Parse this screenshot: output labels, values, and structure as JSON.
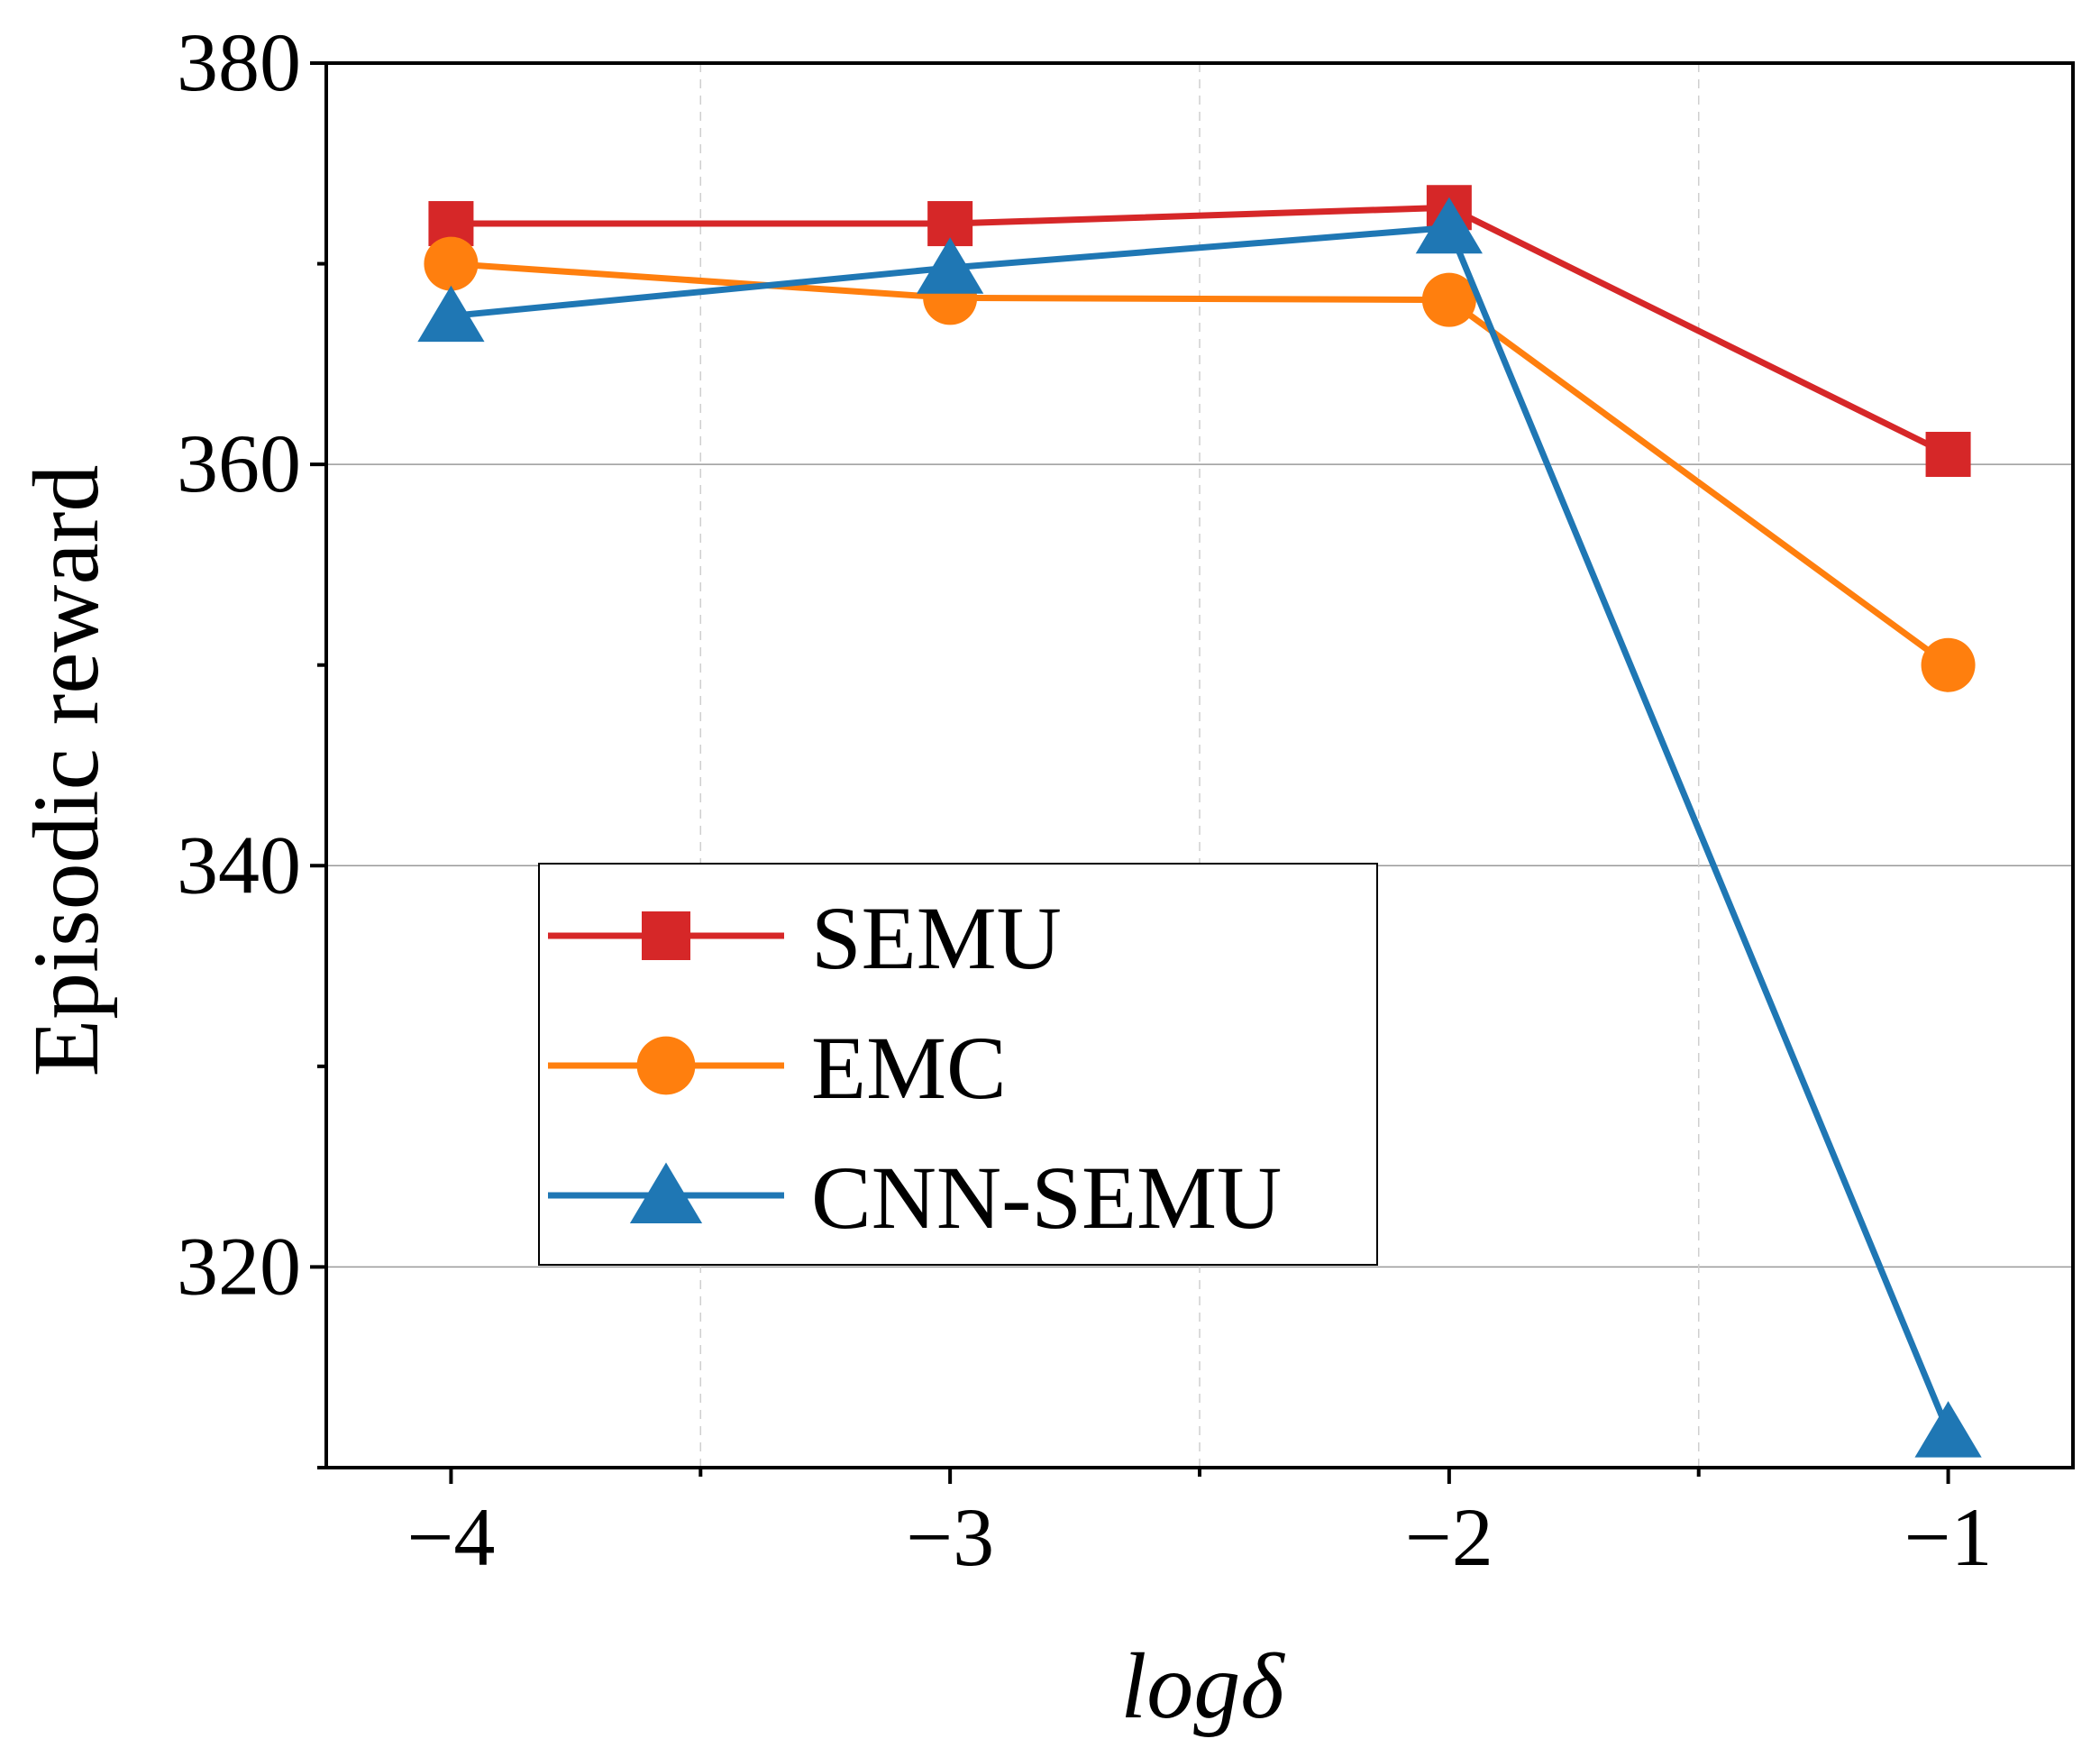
{
  "chart_data": {
    "type": "line",
    "title": "",
    "xlabel": "logδ",
    "ylabel": "Episodic reward",
    "x": [
      -4,
      -3,
      -2,
      -1
    ],
    "x_tick_labels": [
      "−4",
      "−3",
      "−2",
      "−1"
    ],
    "y_tick_values": [
      320,
      340,
      360,
      380
    ],
    "y_tick_labels": [
      "320",
      "340",
      "360",
      "380"
    ],
    "xlim": [
      -4.25,
      -0.75
    ],
    "ylim": [
      310,
      380
    ],
    "grid": true,
    "legend_position": "center-left",
    "series": [
      {
        "name": "SEMU",
        "color": "#d62728",
        "marker": "square",
        "values": [
          372.0,
          372.0,
          372.8,
          360.5
        ]
      },
      {
        "name": "EMC",
        "color": "#ff7f0e",
        "marker": "circle",
        "values": [
          370.0,
          368.3,
          368.2,
          350.0
        ]
      },
      {
        "name": "CNN-SEMU",
        "color": "#1f77b4",
        "marker": "triangle",
        "values": [
          367.4,
          369.8,
          371.8,
          311.8
        ]
      }
    ]
  }
}
